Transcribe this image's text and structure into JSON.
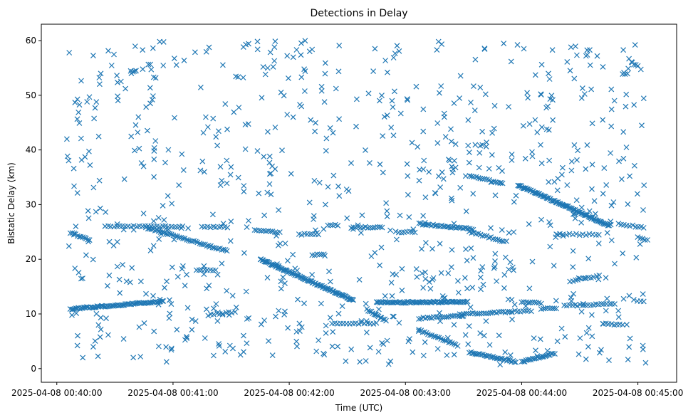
{
  "chart_data": {
    "type": "scatter",
    "title": "Detections in Delay",
    "xlabel": "Time (UTC)",
    "ylabel": "Bistatic Delay (km)",
    "marker": "x",
    "color": "#1f77b4",
    "grid": false,
    "x_axis_type": "time",
    "xlim": [
      "2025-04-08 00:39:52",
      "2025-04-08 00:45:20"
    ],
    "ylim": [
      -2.5,
      63
    ],
    "x_ticks": [
      "2025-04-08 00:40:00",
      "2025-04-08 00:41:00",
      "2025-04-08 00:42:00",
      "2025-04-08 00:43:00",
      "2025-04-08 00:44:00",
      "2025-04-08 00:45:00"
    ],
    "y_ticks": [
      0,
      10,
      20,
      30,
      40,
      50,
      60
    ],
    "tracks": [
      {
        "x_start": "2025-04-08 00:40:07",
        "x_end": "2025-04-08 00:40:55",
        "y_start": 10.9,
        "y_end": 12.3,
        "count": 70
      },
      {
        "x_start": "2025-04-08 00:40:07",
        "x_end": "2025-04-08 00:40:17",
        "y_start": 24.8,
        "y_end": 23.6,
        "count": 12
      },
      {
        "x_start": "2025-04-08 00:40:25",
        "x_end": "2025-04-08 00:41:05",
        "y_start": 26.0,
        "y_end": 26.0,
        "count": 28
      },
      {
        "x_start": "2025-04-08 00:40:46",
        "x_end": "2025-04-08 00:41:28",
        "y_start": 25.8,
        "y_end": 21.5,
        "count": 45
      },
      {
        "x_start": "2025-04-08 00:41:12",
        "x_end": "2025-04-08 00:41:22",
        "y_start": 18.0,
        "y_end": 18.0,
        "count": 8
      },
      {
        "x_start": "2025-04-08 00:41:15",
        "x_end": "2025-04-08 00:41:28",
        "y_start": 25.9,
        "y_end": 25.9,
        "count": 10
      },
      {
        "x_start": "2025-04-08 00:41:18",
        "x_end": "2025-04-08 00:41:32",
        "y_start": 9.8,
        "y_end": 10.4,
        "count": 10
      },
      {
        "x_start": "2025-04-08 00:41:42",
        "x_end": "2025-04-08 00:41:55",
        "y_start": 25.4,
        "y_end": 24.9,
        "count": 12
      },
      {
        "x_start": "2025-04-08 00:41:45",
        "x_end": "2025-04-08 00:42:33",
        "y_start": 20.0,
        "y_end": 12.5,
        "count": 90
      },
      {
        "x_start": "2025-04-08 00:42:05",
        "x_end": "2025-04-08 00:42:15",
        "y_start": 24.6,
        "y_end": 24.5,
        "count": 8
      },
      {
        "x_start": "2025-04-08 00:42:12",
        "x_end": "2025-04-08 00:42:18",
        "y_start": 20.8,
        "y_end": 20.8,
        "count": 6
      },
      {
        "x_start": "2025-04-08 00:42:20",
        "x_end": "2025-04-08 00:42:25",
        "y_start": 26.2,
        "y_end": 26.2,
        "count": 5
      },
      {
        "x_start": "2025-04-08 00:42:22",
        "x_end": "2025-04-08 00:42:45",
        "y_start": 8.2,
        "y_end": 8.3,
        "count": 16
      },
      {
        "x_start": "2025-04-08 00:42:32",
        "x_end": "2025-04-08 00:42:48",
        "y_start": 25.8,
        "y_end": 25.9,
        "count": 14
      },
      {
        "x_start": "2025-04-08 00:42:40",
        "x_end": "2025-04-08 00:42:50",
        "y_start": 10.8,
        "y_end": 8.8,
        "count": 14
      },
      {
        "x_start": "2025-04-08 00:42:45",
        "x_end": "2025-04-08 00:43:32",
        "y_start": 12.1,
        "y_end": 12.2,
        "count": 70
      },
      {
        "x_start": "2025-04-08 00:42:55",
        "x_end": "2025-04-08 00:43:05",
        "y_start": 25.0,
        "y_end": 25.0,
        "count": 8
      },
      {
        "x_start": "2025-04-08 00:43:07",
        "x_end": "2025-04-08 00:43:35",
        "y_start": 26.5,
        "y_end": 25.5,
        "count": 32
      },
      {
        "x_start": "2025-04-08 00:43:07",
        "x_end": "2025-04-08 00:43:30",
        "y_start": 9.2,
        "y_end": 9.7,
        "count": 22
      },
      {
        "x_start": "2025-04-08 00:43:07",
        "x_end": "2025-04-08 00:43:27",
        "y_start": 7.0,
        "y_end": 4.2,
        "count": 22
      },
      {
        "x_start": "2025-04-08 00:43:28",
        "x_end": "2025-04-08 00:43:55",
        "y_start": 10.0,
        "y_end": 10.4,
        "count": 25
      },
      {
        "x_start": "2025-04-08 00:43:33",
        "x_end": "2025-04-08 00:43:57",
        "y_start": 3.0,
        "y_end": 1.2,
        "count": 32
      },
      {
        "x_start": "2025-04-08 00:43:33",
        "x_end": "2025-04-08 00:43:52",
        "y_start": 25.0,
        "y_end": 23.2,
        "count": 18
      },
      {
        "x_start": "2025-04-08 00:43:33",
        "x_end": "2025-04-08 00:43:50",
        "y_start": 35.4,
        "y_end": 33.8,
        "count": 16
      },
      {
        "x_start": "2025-04-08 00:43:55",
        "x_end": "2025-04-08 00:44:05",
        "y_start": 10.5,
        "y_end": 10.5,
        "count": 8
      },
      {
        "x_start": "2025-04-08 00:43:58",
        "x_end": "2025-04-08 00:44:45",
        "y_start": 33.6,
        "y_end": 26.2,
        "count": 90
      },
      {
        "x_start": "2025-04-08 00:44:00",
        "x_end": "2025-04-08 00:44:17",
        "y_start": 1.2,
        "y_end": 2.8,
        "count": 22
      },
      {
        "x_start": "2025-04-08 00:44:00",
        "x_end": "2025-04-08 00:44:10",
        "y_start": 12.2,
        "y_end": 12.0,
        "count": 10
      },
      {
        "x_start": "2025-04-08 00:44:10",
        "x_end": "2025-04-08 00:44:18",
        "y_start": 11.0,
        "y_end": 11.0,
        "count": 8
      },
      {
        "x_start": "2025-04-08 00:44:18",
        "x_end": "2025-04-08 00:44:40",
        "y_start": 24.6,
        "y_end": 24.5,
        "count": 14
      },
      {
        "x_start": "2025-04-08 00:44:22",
        "x_end": "2025-04-08 00:44:48",
        "y_start": 11.5,
        "y_end": 11.8,
        "count": 20
      },
      {
        "x_start": "2025-04-08 00:44:25",
        "x_end": "2025-04-08 00:44:40",
        "y_start": 16.0,
        "y_end": 17.0,
        "count": 12
      },
      {
        "x_start": "2025-04-08 00:44:42",
        "x_end": "2025-04-08 00:44:52",
        "y_start": 8.2,
        "y_end": 8.0,
        "count": 8
      },
      {
        "x_start": "2025-04-08 00:44:50",
        "x_end": "2025-04-08 00:45:03",
        "y_start": 26.5,
        "y_end": 25.8,
        "count": 10
      },
      {
        "x_start": "2025-04-08 00:44:58",
        "x_end": "2025-04-08 00:45:03",
        "y_start": 12.5,
        "y_end": 12.3,
        "count": 4
      },
      {
        "x_start": "2025-04-08 00:45:00",
        "x_end": "2025-04-08 00:45:05",
        "y_start": 24.0,
        "y_end": 23.5,
        "count": 5
      }
    ],
    "clutter": {
      "x_range": [
        "2025-04-08 00:40:05",
        "2025-04-08 00:45:05"
      ],
      "y_range": [
        0.5,
        60
      ],
      "count": 820
    }
  }
}
